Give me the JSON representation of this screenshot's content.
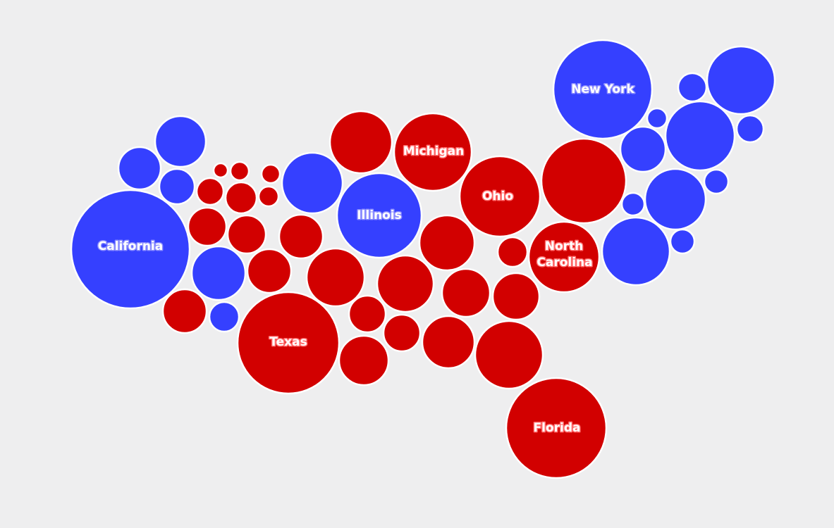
{
  "colors": {
    "background": "#eeeeef",
    "dem": "#3540ff",
    "rep": "#d20000",
    "outline": "#ffffff"
  },
  "labels": {
    "california": "California",
    "texas": "Texas",
    "illinois": "Illinois",
    "michigan": "Michigan",
    "ohio": "Ohio",
    "new_york": "New York",
    "north_carolina_1": "North",
    "north_carolina_2": "Carolina",
    "florida": "Florida"
  }
}
